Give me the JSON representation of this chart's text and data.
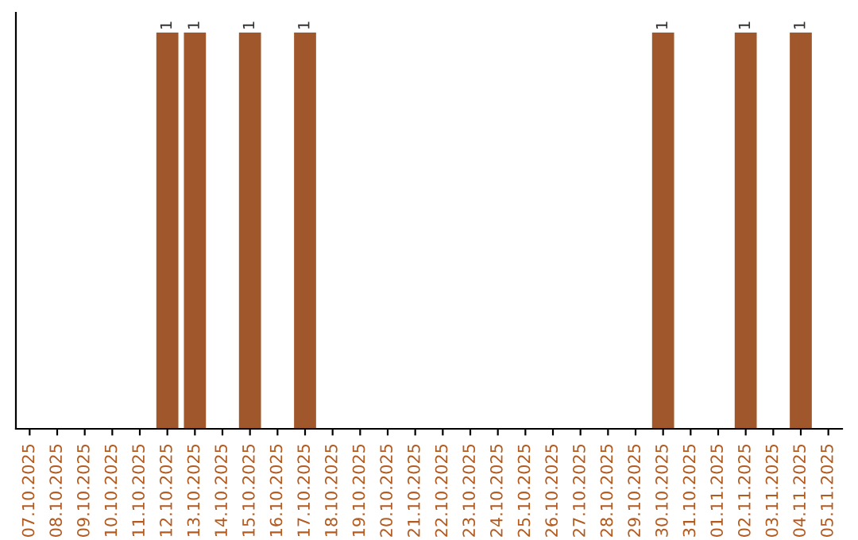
{
  "chart_data": {
    "type": "bar",
    "categories": [
      "07.10.2025",
      "08.10.2025",
      "09.10.2025",
      "10.10.2025",
      "11.10.2025",
      "12.10.2025",
      "13.10.2025",
      "14.10.2025",
      "15.10.2025",
      "16.10.2025",
      "17.10.2025",
      "18.10.2025",
      "19.10.2025",
      "20.10.2025",
      "21.10.2025",
      "22.10.2025",
      "23.10.2025",
      "24.10.2025",
      "25.10.2025",
      "26.10.2025",
      "27.10.2025",
      "28.10.2025",
      "29.10.2025",
      "30.10.2025",
      "31.10.2025",
      "01.11.2025",
      "02.11.2025",
      "03.11.2025",
      "04.11.2025",
      "05.11.2025"
    ],
    "values": [
      0,
      0,
      0,
      0,
      0,
      1,
      1,
      0,
      1,
      0,
      1,
      0,
      0,
      0,
      0,
      0,
      0,
      0,
      0,
      0,
      0,
      0,
      0,
      1,
      0,
      0,
      1,
      0,
      1,
      0
    ],
    "value_labels": [
      null,
      null,
      null,
      null,
      null,
      "1",
      "1",
      null,
      "1",
      null,
      "1",
      null,
      null,
      null,
      null,
      null,
      null,
      null,
      null,
      null,
      null,
      null,
      null,
      "1",
      null,
      null,
      "1",
      null,
      "1",
      null
    ],
    "color": "#a0572b",
    "tick_labels": "x",
    "grid": false,
    "legend": false
  }
}
